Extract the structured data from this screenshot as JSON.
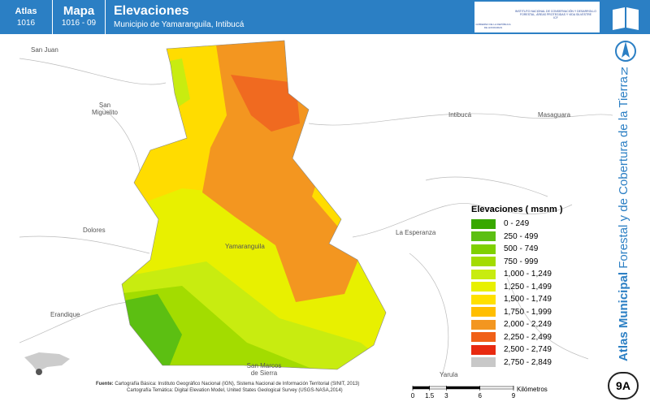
{
  "header": {
    "atlas_label": "Atlas",
    "atlas_number": "1016",
    "map_label": "Mapa",
    "map_number": "1016 - 09",
    "title": "Elevaciones",
    "subtitle": "Municipio de Yamaranguila, Intibucá",
    "logo_left": "GOBIERNO DE LA REPÚBLICA DE HONDURAS",
    "logo_right": "INSTITUTO NACIONAL DE CONSERVACIÓN Y DESARROLLO FORESTAL, ÁREAS PROTEGIDAS Y VIDA SILVESTRE",
    "logo_right_short": "ICF"
  },
  "side": {
    "north": "N",
    "series_title_bold": "Atlas Municipal",
    "series_title": "Forestal y de Cobertura de la Tierra",
    "sheet": "9A"
  },
  "places": [
    "San Juan",
    "San Miguelito",
    "Intibucá",
    "Masaguara",
    "Dolores",
    "La Esperanza",
    "Yamaranguila",
    "Erandique",
    "San Marcos de Sierra",
    "Yarula"
  ],
  "legend": {
    "title": "Elevaciones ( msnm )",
    "items": [
      {
        "label": "0 - 249",
        "color": "#38a800"
      },
      {
        "label": "250 - 499",
        "color": "#5cbf12"
      },
      {
        "label": "500 - 749",
        "color": "#7fd000"
      },
      {
        "label": "750 - 999",
        "color": "#a3dc00"
      },
      {
        "label": "1,000 - 1,249",
        "color": "#c8ec10"
      },
      {
        "label": "1,250 - 1,499",
        "color": "#e8f000"
      },
      {
        "label": "1,500 - 1,749",
        "color": "#ffe000"
      },
      {
        "label": "1,750 - 1,999",
        "color": "#ffbe00"
      },
      {
        "label": "2,000 - 2,249",
        "color": "#f39620"
      },
      {
        "label": "2,250 - 2,499",
        "color": "#f06018"
      },
      {
        "label": "2,500 - 2,749",
        "color": "#e82a10"
      },
      {
        "label": "2,750 - 2,849",
        "color": "#c8c8c8"
      }
    ]
  },
  "scale": {
    "ticks": [
      0,
      1.5,
      3,
      6,
      9
    ],
    "unit": "Kilómetros"
  },
  "source": {
    "label": "Fuente:",
    "line1": "Cartografía Básica: Instituto Geográfico Nacional (IGN), Sistema Nacional de Información Territorial (SINIT, 2013)",
    "line2": "Cartografía Temática: Digital Elevation Model, United States Geological Survey (USGS-NASA,2014)"
  }
}
